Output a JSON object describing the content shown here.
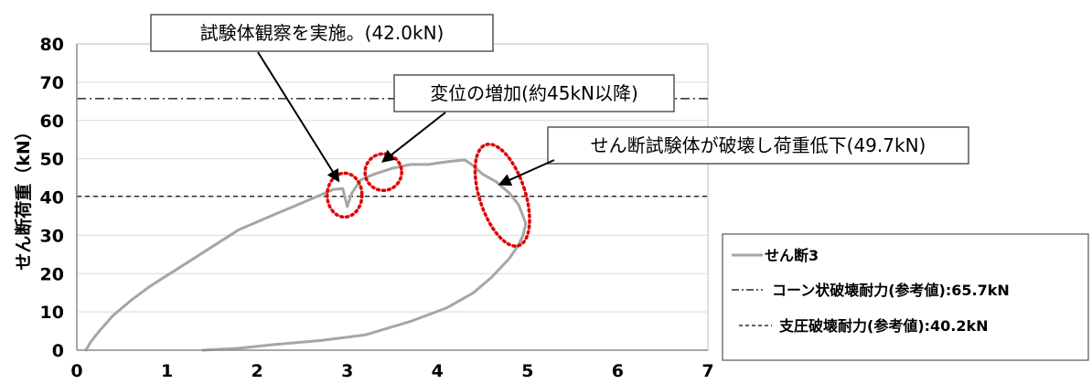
{
  "chart_data": {
    "type": "line",
    "xlabel": "",
    "ylabel": "せん断荷重（kN）",
    "xlim": [
      0,
      7
    ],
    "ylim": [
      0,
      80
    ],
    "xticks": [
      "0",
      "1",
      "2",
      "3",
      "4",
      "5",
      "6",
      "7"
    ],
    "yticks": [
      "0",
      "10",
      "20",
      "30",
      "40",
      "50",
      "60",
      "70",
      "80"
    ],
    "grid": "horizontal",
    "legend_position": "bottom-right",
    "series": [
      {
        "name": "せん断3",
        "color": "#a6a6a6",
        "x": [
          0.1,
          0.15,
          0.25,
          0.4,
          0.6,
          0.8,
          1.0,
          1.2,
          1.4,
          1.6,
          1.8,
          2.0,
          2.2,
          2.4,
          2.6,
          2.75,
          2.85,
          2.95,
          3.0,
          3.05,
          3.15,
          3.3,
          3.5,
          3.7,
          3.9,
          4.1,
          4.3,
          4.38,
          4.5,
          4.65,
          4.8,
          4.9,
          4.95,
          4.98,
          4.95,
          4.9,
          4.8,
          4.6,
          4.4,
          4.1,
          3.7,
          3.2,
          2.7,
          2.2,
          1.8,
          1.4
        ],
        "y": [
          0,
          2,
          5,
          9,
          13,
          16.5,
          19.5,
          22.5,
          25.5,
          28.5,
          31.5,
          33.5,
          35.5,
          37.5,
          39.5,
          41,
          42,
          42.2,
          37.5,
          41,
          44.5,
          46,
          47.5,
          48.5,
          48.5,
          49.2,
          49.7,
          48.5,
          46,
          44,
          41,
          38,
          35,
          33,
          30,
          27.5,
          24,
          19,
          15,
          11,
          7.5,
          4,
          2.5,
          1.5,
          0.5,
          0
        ]
      },
      {
        "name": "コーン状破壊耐力(参考値):65.7kN",
        "color": "#000000",
        "style": "dash-dot",
        "y": 65.7
      },
      {
        "name": "支圧破壊耐力(参考値):40.2kN",
        "color": "#000000",
        "style": "dashed",
        "y": 40.2
      }
    ],
    "annotations": [
      {
        "text": "試験体観察を実施。(42.0kN)",
        "target": [
          3.0,
          42.0
        ]
      },
      {
        "text": "変位の増加(約45kN以降)",
        "target": [
          3.35,
          47.0
        ]
      },
      {
        "text": "せん断試験体が破壊し荷重低下(49.7kN)",
        "target": [
          4.72,
          41.0
        ]
      }
    ],
    "highlights": [
      {
        "shape": "dotted-ellipse",
        "color": "#e00000",
        "center": [
          2.97,
          40.5
        ]
      },
      {
        "shape": "dotted-ellipse",
        "color": "#e00000",
        "center": [
          3.4,
          46.5
        ]
      },
      {
        "shape": "dotted-ellipse",
        "color": "#e00000",
        "center": [
          4.72,
          40.5
        ]
      }
    ]
  }
}
